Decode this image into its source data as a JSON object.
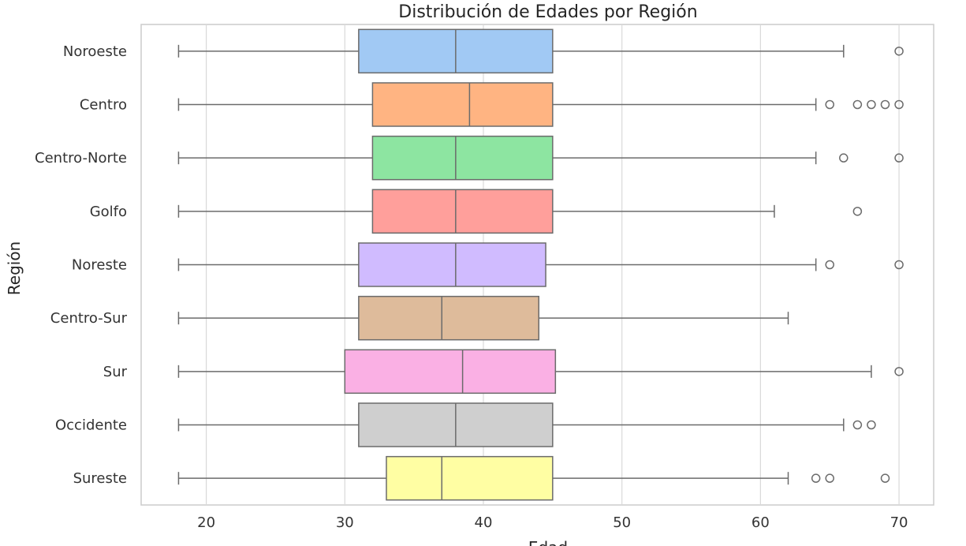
{
  "chart_data": {
    "type": "boxplot",
    "orientation": "horizontal",
    "title": "Distribución de Edades por Región",
    "xlabel": "Edad",
    "ylabel": "Región",
    "xlim": [
      15.3,
      72.5
    ],
    "xticks": [
      20,
      30,
      40,
      50,
      60,
      70
    ],
    "grid": true,
    "categories": [
      "Noroeste",
      "Centro",
      "Centro-Norte",
      "Golfo",
      "Noreste",
      "Centro-Sur",
      "Sur",
      "Occidente",
      "Sureste"
    ],
    "series": [
      {
        "category": "Noroeste",
        "whisker_low": 18,
        "q1": 31,
        "median": 38,
        "q3": 45,
        "whisker_high": 66,
        "outliers": [
          70
        ],
        "color": "#a1c9f4"
      },
      {
        "category": "Centro",
        "whisker_low": 18,
        "q1": 32,
        "median": 39,
        "q3": 45,
        "whisker_high": 64,
        "outliers": [
          65,
          67,
          68,
          69,
          70
        ],
        "color": "#ffb482"
      },
      {
        "category": "Centro-Norte",
        "whisker_low": 18,
        "q1": 32,
        "median": 38,
        "q3": 45,
        "whisker_high": 64,
        "outliers": [
          66,
          70
        ],
        "color": "#8de5a1"
      },
      {
        "category": "Golfo",
        "whisker_low": 18,
        "q1": 32,
        "median": 38,
        "q3": 45,
        "whisker_high": 61,
        "outliers": [
          67
        ],
        "color": "#ff9f9b"
      },
      {
        "category": "Noreste",
        "whisker_low": 18,
        "q1": 31,
        "median": 38,
        "q3": 44.5,
        "whisker_high": 64,
        "outliers": [
          65,
          70
        ],
        "color": "#d0bbff"
      },
      {
        "category": "Centro-Sur",
        "whisker_low": 18,
        "q1": 31,
        "median": 37,
        "q3": 44,
        "whisker_high": 62,
        "outliers": [],
        "color": "#debb9b"
      },
      {
        "category": "Sur",
        "whisker_low": 18,
        "q1": 30,
        "median": 38.5,
        "q3": 45.2,
        "whisker_high": 68,
        "outliers": [
          70
        ],
        "color": "#fab0e4"
      },
      {
        "category": "Occidente",
        "whisker_low": 18,
        "q1": 31,
        "median": 38,
        "q3": 45,
        "whisker_high": 66,
        "outliers": [
          67,
          68
        ],
        "color": "#cfcfcf"
      },
      {
        "category": "Sureste",
        "whisker_low": 18,
        "q1": 33,
        "median": 37,
        "q3": 45,
        "whisker_high": 62,
        "outliers": [
          64,
          65,
          69
        ],
        "color": "#fffea3"
      }
    ],
    "colors": {
      "line": "#6b6b6b",
      "grid": "#d9d9d9",
      "frame": "#cccccc"
    }
  }
}
